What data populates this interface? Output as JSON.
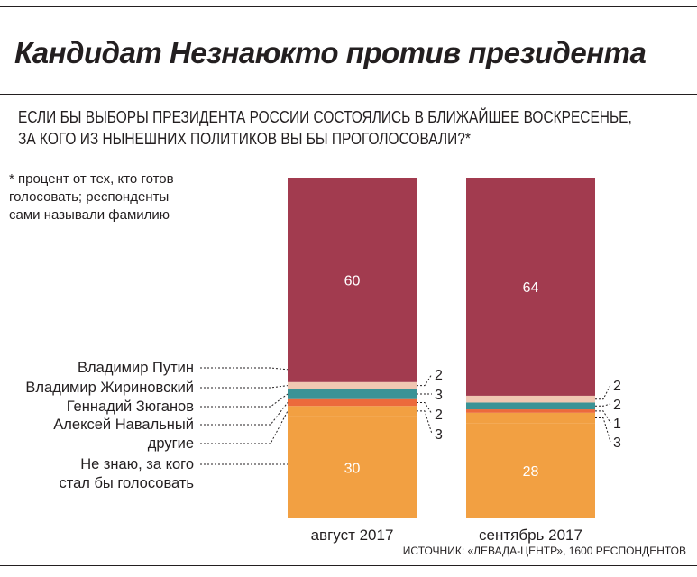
{
  "title": "Кандидат Незнаюкто против президента",
  "question": "ЕСЛИ БЫ ВЫБОРЫ ПРЕЗИДЕНТА РОССИИ СОСТОЯЛИСЬ В БЛИЖАЙШЕЕ ВОСКРЕСЕНЬЕ,\nЗА КОГО ИЗ НЫНЕШНИХ ПОЛИТИКОВ ВЫ БЫ ПРОГОЛОСОВАЛИ?*",
  "footnote": "* процент от тех, кто готов\n  голосовать; респонденты\n  сами называли фамилию",
  "source": "ИСТОЧНИК: «ЛЕВАДА-ЦЕНТР», 1600 РЕСПОНДЕНТОВ",
  "chart_data": {
    "type": "bar",
    "stacked": true,
    "unit": "%",
    "categories": [
      "август 2017",
      "сентябрь 2017"
    ],
    "series": [
      {
        "name": "Не знаю, за кого стал бы голосовать",
        "color": "#f2a042",
        "values": [
          30,
          28
        ]
      },
      {
        "name": "другие",
        "color": "#f2a042",
        "values": [
          3,
          3
        ]
      },
      {
        "name": "Алексей Навальный",
        "color": "#ec6a3c",
        "values": [
          2,
          1
        ]
      },
      {
        "name": "Геннадий Зюганов",
        "color": "#3a9396",
        "values": [
          3,
          2
        ]
      },
      {
        "name": "Владимир Жириновский",
        "color": "#f0c7b2",
        "values": [
          2,
          2
        ]
      },
      {
        "name": "Владимир Путин",
        "color": "#a23b4f",
        "values": [
          60,
          64
        ]
      }
    ],
    "legend_labels": [
      "Владимир Путин",
      "Владимир Жириновский",
      "Геннадий Зюганов",
      "Алексей Навальный",
      "другие",
      "Не знаю, за кого\nстал бы голосовать"
    ]
  }
}
